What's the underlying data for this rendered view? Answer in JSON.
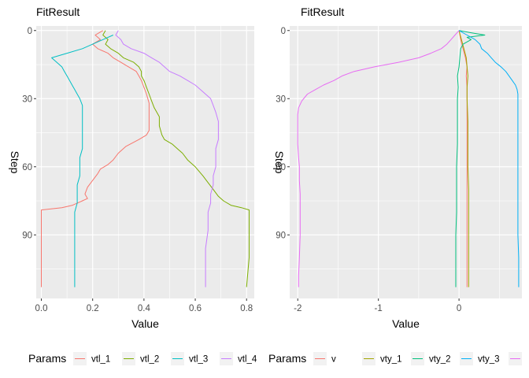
{
  "chart_data": [
    {
      "type": "line",
      "title": "FitResult",
      "xlabel": "Value",
      "ylabel": "Step",
      "xlim": [
        -0.02,
        0.83
      ],
      "ylim": [
        -2,
        118
      ],
      "y_reversed": true,
      "xticks": [
        0.0,
        0.2,
        0.4,
        0.6,
        0.8
      ],
      "xtick_labels": [
        "0.0",
        "0.2",
        "0.4",
        "0.6",
        "0.8"
      ],
      "yticks": [
        0,
        30,
        60,
        90
      ],
      "ytick_labels": [
        "0",
        "30",
        "60",
        "90"
      ],
      "grid": true,
      "legend": {
        "title": "Params",
        "position": "bottom",
        "entries": [
          "vtl_1",
          "vtl_2",
          "vtl_3",
          "vtl_4"
        ]
      },
      "series": [
        {
          "name": "vtl_1",
          "color": "#F8766D",
          "points": [
            [
              0.24,
              0
            ],
            [
              0.21,
              2
            ],
            [
              0.23,
              4
            ],
            [
              0.2,
              6
            ],
            [
              0.22,
              8
            ],
            [
              0.26,
              10
            ],
            [
              0.28,
              12
            ],
            [
              0.31,
              14
            ],
            [
              0.34,
              16
            ],
            [
              0.37,
              18
            ],
            [
              0.38,
              20
            ],
            [
              0.39,
              22
            ],
            [
              0.4,
              25
            ],
            [
              0.41,
              28
            ],
            [
              0.42,
              32
            ],
            [
              0.42,
              36
            ],
            [
              0.42,
              40
            ],
            [
              0.42,
              44
            ],
            [
              0.41,
              46
            ],
            [
              0.38,
              48
            ],
            [
              0.33,
              51
            ],
            [
              0.3,
              54
            ],
            [
              0.28,
              57
            ],
            [
              0.26,
              59
            ],
            [
              0.23,
              61
            ],
            [
              0.22,
              63
            ],
            [
              0.2,
              66
            ],
            [
              0.18,
              69
            ],
            [
              0.17,
              72
            ],
            [
              0.18,
              74
            ],
            [
              0.16,
              75
            ],
            [
              0.14,
              76
            ],
            [
              0.12,
              77
            ],
            [
              0.08,
              78
            ],
            [
              0.0,
              79
            ],
            [
              0.0,
              82
            ],
            [
              0.0,
              90
            ],
            [
              0.0,
              100
            ],
            [
              0.0,
              113
            ]
          ]
        },
        {
          "name": "vtl_2",
          "color": "#7CAE00",
          "points": [
            [
              0.25,
              0
            ],
            [
              0.24,
              2
            ],
            [
              0.26,
              4
            ],
            [
              0.25,
              6
            ],
            [
              0.27,
              8
            ],
            [
              0.3,
              10
            ],
            [
              0.32,
              12
            ],
            [
              0.36,
              14
            ],
            [
              0.38,
              16
            ],
            [
              0.39,
              18
            ],
            [
              0.39,
              20
            ],
            [
              0.4,
              22
            ],
            [
              0.41,
              25
            ],
            [
              0.42,
              28
            ],
            [
              0.43,
              31
            ],
            [
              0.44,
              34
            ],
            [
              0.46,
              38
            ],
            [
              0.46,
              42
            ],
            [
              0.47,
              46
            ],
            [
              0.48,
              48
            ],
            [
              0.51,
              50
            ],
            [
              0.53,
              52
            ],
            [
              0.55,
              54
            ],
            [
              0.57,
              57
            ],
            [
              0.6,
              60
            ],
            [
              0.63,
              64
            ],
            [
              0.65,
              67
            ],
            [
              0.67,
              70
            ],
            [
              0.69,
              73
            ],
            [
              0.71,
              75
            ],
            [
              0.74,
              77
            ],
            [
              0.78,
              78
            ],
            [
              0.81,
              79
            ],
            [
              0.81,
              82
            ],
            [
              0.81,
              90
            ],
            [
              0.81,
              100
            ],
            [
              0.8,
              113
            ]
          ]
        },
        {
          "name": "vtl_3",
          "color": "#00BFC4",
          "points": [
            [
              0.28,
              2
            ],
            [
              0.24,
              4
            ],
            [
              0.2,
              6
            ],
            [
              0.16,
              8
            ],
            [
              0.1,
              10
            ],
            [
              0.04,
              12
            ],
            [
              0.06,
              14
            ],
            [
              0.08,
              16
            ],
            [
              0.09,
              18
            ],
            [
              0.1,
              20
            ],
            [
              0.11,
              22
            ],
            [
              0.12,
              24
            ],
            [
              0.13,
              26
            ],
            [
              0.14,
              28
            ],
            [
              0.15,
              30
            ],
            [
              0.16,
              33
            ],
            [
              0.16,
              36
            ],
            [
              0.16,
              40
            ],
            [
              0.16,
              44
            ],
            [
              0.16,
              48
            ],
            [
              0.16,
              52
            ],
            [
              0.15,
              56
            ],
            [
              0.15,
              60
            ],
            [
              0.15,
              64
            ],
            [
              0.14,
              68
            ],
            [
              0.14,
              72
            ],
            [
              0.14,
              76
            ],
            [
              0.13,
              80
            ],
            [
              0.13,
              86
            ],
            [
              0.13,
              92
            ],
            [
              0.13,
              100
            ],
            [
              0.13,
              113
            ]
          ]
        },
        {
          "name": "vtl_4",
          "color": "#C77CFF",
          "points": [
            [
              0.3,
              0
            ],
            [
              0.29,
              2
            ],
            [
              0.31,
              4
            ],
            [
              0.32,
              6
            ],
            [
              0.35,
              8
            ],
            [
              0.4,
              10
            ],
            [
              0.43,
              12
            ],
            [
              0.46,
              14
            ],
            [
              0.48,
              16
            ],
            [
              0.5,
              18
            ],
            [
              0.54,
              20
            ],
            [
              0.57,
              22
            ],
            [
              0.6,
              24
            ],
            [
              0.62,
              26
            ],
            [
              0.64,
              28
            ],
            [
              0.66,
              30
            ],
            [
              0.67,
              33
            ],
            [
              0.68,
              36
            ],
            [
              0.69,
              40
            ],
            [
              0.69,
              44
            ],
            [
              0.69,
              48
            ],
            [
              0.68,
              52
            ],
            [
              0.68,
              56
            ],
            [
              0.68,
              60
            ],
            [
              0.67,
              64
            ],
            [
              0.67,
              68
            ],
            [
              0.66,
              72
            ],
            [
              0.66,
              76
            ],
            [
              0.65,
              80
            ],
            [
              0.65,
              88
            ],
            [
              0.64,
              96
            ],
            [
              0.64,
              104
            ],
            [
              0.64,
              113
            ]
          ]
        }
      ]
    },
    {
      "type": "line",
      "title": "FitResult",
      "xlabel": "Value",
      "ylabel": "Step",
      "xlim": [
        -2.1,
        0.78
      ],
      "ylim": [
        -2,
        118
      ],
      "y_reversed": true,
      "xticks": [
        -2,
        -1,
        0
      ],
      "xtick_labels": [
        "-2",
        "-1",
        "0"
      ],
      "yticks": [
        0,
        30,
        60,
        90
      ],
      "ytick_labels": [
        "0",
        "30",
        "60",
        "90"
      ],
      "grid": true,
      "legend": {
        "title": "Params",
        "position": "bottom",
        "entries": [
          "v",
          "vty_1",
          "vty_2",
          "vty_3",
          ""
        ]
      },
      "series": [
        {
          "name": "v",
          "color": "#F8766D",
          "points": [
            [
              0.0,
              0
            ],
            [
              0.02,
              4
            ],
            [
              0.05,
              8
            ],
            [
              0.08,
              12
            ],
            [
              0.1,
              16
            ],
            [
              0.09,
              20
            ],
            [
              0.1,
              25
            ],
            [
              0.1,
              30
            ],
            [
              0.1,
              40
            ],
            [
              0.1,
              50
            ],
            [
              0.1,
              60
            ],
            [
              0.1,
              70
            ],
            [
              0.1,
              80
            ],
            [
              0.1,
              90
            ],
            [
              0.1,
              100
            ],
            [
              0.1,
              113
            ]
          ]
        },
        {
          "name": "vty_1",
          "color": "#A3A500",
          "points": [
            [
              0.0,
              0
            ],
            [
              0.03,
              4
            ],
            [
              0.06,
              8
            ],
            [
              0.09,
              12
            ],
            [
              0.1,
              16
            ],
            [
              0.11,
              20
            ],
            [
              0.1,
              25
            ],
            [
              0.1,
              30
            ],
            [
              0.11,
              40
            ],
            [
              0.11,
              50
            ],
            [
              0.11,
              60
            ],
            [
              0.12,
              70
            ],
            [
              0.12,
              80
            ],
            [
              0.12,
              90
            ],
            [
              0.12,
              100
            ],
            [
              0.12,
              113
            ]
          ]
        },
        {
          "name": "vty_2",
          "color": "#00BF7D",
          "points": [
            [
              0.0,
              0
            ],
            [
              0.15,
              1
            ],
            [
              0.32,
              2
            ],
            [
              0.1,
              3
            ],
            [
              0.15,
              4
            ],
            [
              0.05,
              6
            ],
            [
              0.02,
              8
            ],
            [
              0.01,
              12
            ],
            [
              0.0,
              16
            ],
            [
              -0.02,
              20
            ],
            [
              -0.01,
              25
            ],
            [
              -0.02,
              30
            ],
            [
              -0.02,
              40
            ],
            [
              -0.02,
              50
            ],
            [
              -0.03,
              60
            ],
            [
              -0.03,
              70
            ],
            [
              -0.03,
              80
            ],
            [
              -0.04,
              90
            ],
            [
              -0.04,
              100
            ],
            [
              -0.04,
              113
            ]
          ]
        },
        {
          "name": "vty_3",
          "color": "#00B0F6",
          "points": [
            [
              0.0,
              0
            ],
            [
              0.1,
              2
            ],
            [
              0.2,
              4
            ],
            [
              0.26,
              6
            ],
            [
              0.28,
              8
            ],
            [
              0.35,
              10
            ],
            [
              0.4,
              12
            ],
            [
              0.45,
              14
            ],
            [
              0.52,
              16
            ],
            [
              0.58,
              18
            ],
            [
              0.62,
              20
            ],
            [
              0.66,
              22
            ],
            [
              0.7,
              24
            ],
            [
              0.72,
              26
            ],
            [
              0.73,
              28
            ],
            [
              0.73,
              32
            ],
            [
              0.73,
              40
            ],
            [
              0.73,
              50
            ],
            [
              0.73,
              60
            ],
            [
              0.73,
              70
            ],
            [
              0.73,
              80
            ],
            [
              0.73,
              90
            ],
            [
              0.74,
              100
            ],
            [
              0.74,
              113
            ]
          ]
        },
        {
          "name": "",
          "color": "#E76BF3",
          "points": [
            [
              0.0,
              0
            ],
            [
              -0.05,
              2
            ],
            [
              -0.1,
              4
            ],
            [
              -0.15,
              6
            ],
            [
              -0.22,
              8
            ],
            [
              -0.35,
              10
            ],
            [
              -0.5,
              12
            ],
            [
              -0.75,
              14
            ],
            [
              -1.05,
              16
            ],
            [
              -1.3,
              18
            ],
            [
              -1.45,
              20
            ],
            [
              -1.55,
              22
            ],
            [
              -1.68,
              24
            ],
            [
              -1.78,
              26
            ],
            [
              -1.88,
              28
            ],
            [
              -1.95,
              31
            ],
            [
              -1.99,
              34
            ],
            [
              -2.0,
              37
            ],
            [
              -2.0,
              42
            ],
            [
              -2.0,
              50
            ],
            [
              -1.99,
              56
            ],
            [
              -1.98,
              60
            ],
            [
              -1.98,
              66
            ],
            [
              -1.97,
              72
            ],
            [
              -1.97,
              80
            ],
            [
              -1.97,
              90
            ],
            [
              -1.98,
              100
            ],
            [
              -1.99,
              108
            ],
            [
              -1.99,
              113
            ]
          ]
        }
      ]
    }
  ]
}
